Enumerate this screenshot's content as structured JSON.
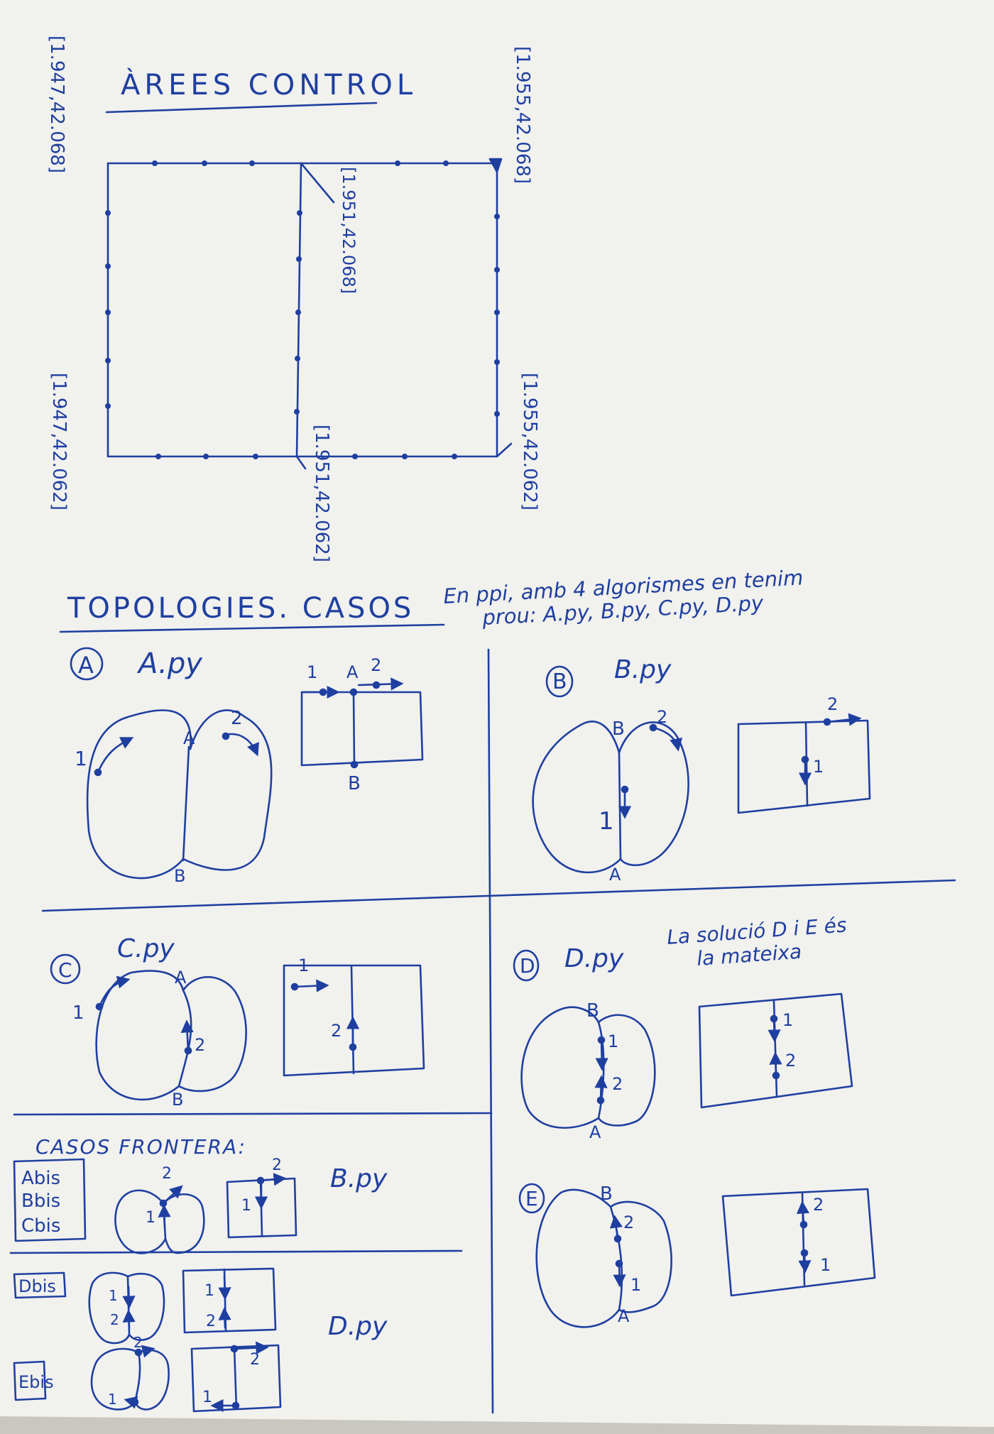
{
  "title": "ÀREES CONTROL",
  "coords": {
    "top_left": "[1.947,42.068]",
    "top_right": "[1.955,42.068]",
    "mid_top": "[1.951,42.068]",
    "bottom_left": "[1.947,42.062]",
    "mid_bottom": "[1.951,42.062]",
    "bottom_right": "[1.955,42.062]"
  },
  "topologies": {
    "heading": "TOPOLOGIES. CASOS",
    "note_line1": "En ppi, amb 4 algorismes en tenim",
    "note_line2": "prou: A.py, B.py, C.py, D.py"
  },
  "labels": {
    "A": "A",
    "B": "B",
    "C": "C",
    "D": "D",
    "E": "E",
    "one": "1",
    "two": "2"
  },
  "cases": {
    "A": {
      "script": "A.py"
    },
    "B": {
      "script": "B.py"
    },
    "C": {
      "script": "C.py"
    },
    "D": {
      "script": "D.py",
      "note_line1": "La solució D i E és",
      "note_line2": "la mateixa"
    }
  },
  "frontera": {
    "heading": "CASOS FRONTERA:",
    "box_line1": "Abis",
    "box_line2": "Bbis",
    "box_line3": "Cbis",
    "script1": "B.py",
    "dbis": "Dbis",
    "ebis": "Ebis",
    "script2": "D.py"
  },
  "colors": {
    "ink": "#1f3fa0",
    "paper": "#f1f1ee",
    "shadow": "#c9c7c0"
  }
}
